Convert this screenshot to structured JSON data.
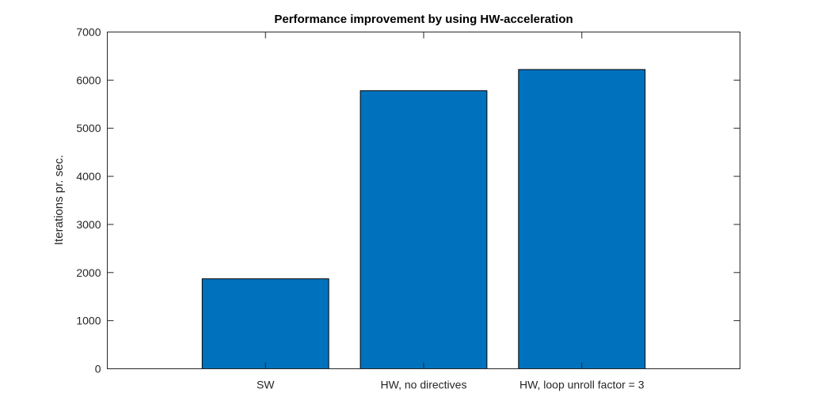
{
  "chart_data": {
    "type": "bar",
    "title": "Performance improvement by using HW-acceleration",
    "xlabel": "",
    "ylabel": "Iterations pr. sec.",
    "categories": [
      "SW",
      "HW, no directives",
      "HW, loop unroll factor = 3"
    ],
    "values": [
      1870,
      5780,
      6220
    ],
    "ylim": [
      0,
      7000
    ],
    "yticks": [
      0,
      1000,
      2000,
      3000,
      4000,
      5000,
      6000,
      7000
    ],
    "xlim": [
      0,
      4
    ],
    "bar_color": "#0072BD",
    "grid": false,
    "legend": "none"
  }
}
